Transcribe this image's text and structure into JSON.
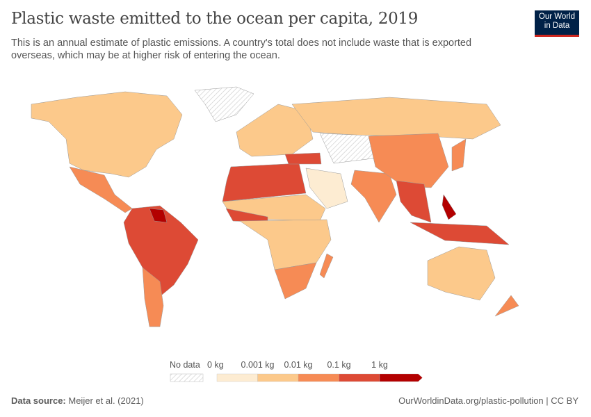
{
  "header": {
    "title": "Plastic waste emitted to the ocean per capita, 2019",
    "subtitle": "This is an annual estimate of plastic emissions. A country's total does not include waste that is exported overseas, which may be at higher risk of entering the ocean.",
    "logo": "Our World in Data"
  },
  "legend": {
    "no_data_label": "No data",
    "bins": [
      {
        "label": "0 kg",
        "color": "#fdecd2"
      },
      {
        "label": "0.001 kg",
        "color": "#fcc98b"
      },
      {
        "label": "0.01 kg",
        "color": "#f68b55"
      },
      {
        "label": "0.1 kg",
        "color": "#dd4a35"
      },
      {
        "label": "1 kg",
        "color": "#b30000"
      }
    ]
  },
  "footer": {
    "source_label": "Data source:",
    "source": "Meijer et al. (2021)",
    "link": "OurWorldinData.org/plastic-pollution | CC BY"
  },
  "map_regions": [
    {
      "name": "canada-usa",
      "bin": 1
    },
    {
      "name": "greenland",
      "bin": -1
    },
    {
      "name": "mexico-central-america",
      "bin": 2
    },
    {
      "name": "brazil-north-south-america",
      "bin": 3
    },
    {
      "name": "argentina-chile",
      "bin": 2
    },
    {
      "name": "north-africa",
      "bin": 3
    },
    {
      "name": "sahel",
      "bin": 1
    },
    {
      "name": "west-africa-coast",
      "bin": 3
    },
    {
      "name": "sub-saharan-africa",
      "bin": 1
    },
    {
      "name": "southern-africa",
      "bin": 2
    },
    {
      "name": "europe",
      "bin": 1
    },
    {
      "name": "turkey",
      "bin": 3
    },
    {
      "name": "russia",
      "bin": 1
    },
    {
      "name": "central-asia",
      "bin": -1
    },
    {
      "name": "arabian-peninsula",
      "bin": 0
    },
    {
      "name": "india",
      "bin": 2
    },
    {
      "name": "china",
      "bin": 2
    },
    {
      "name": "southeast-asia",
      "bin": 3
    },
    {
      "name": "philippines",
      "bin": 4
    },
    {
      "name": "indonesia",
      "bin": 3
    },
    {
      "name": "japan",
      "bin": 2
    },
    {
      "name": "australia",
      "bin": 1
    },
    {
      "name": "new-zealand",
      "bin": 2
    },
    {
      "name": "madagascar",
      "bin": 2
    },
    {
      "name": "suriname-guyana",
      "bin": 4
    }
  ]
}
